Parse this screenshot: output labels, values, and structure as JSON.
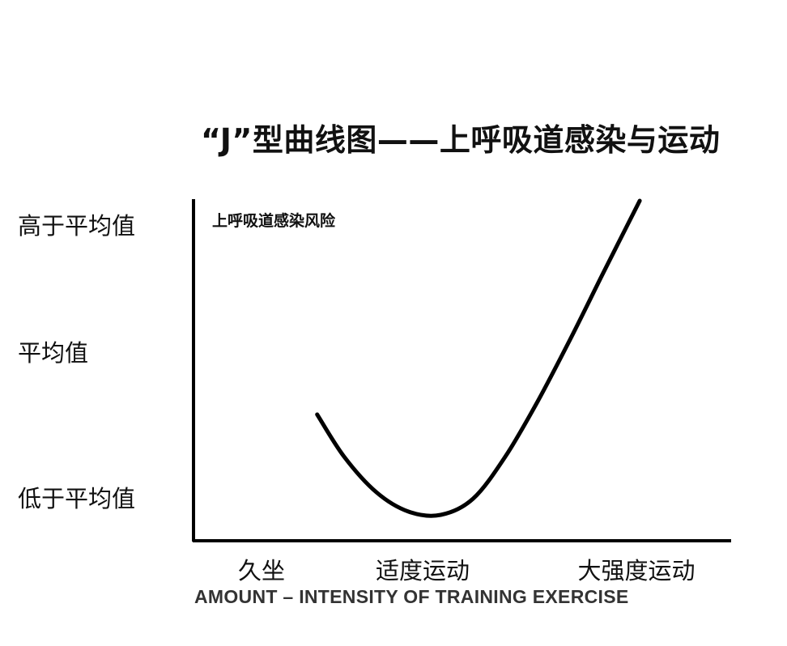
{
  "chart_data": {
    "type": "line",
    "title": "“J”型曲线图——上呼吸道感染与运动",
    "ylabel": "上呼吸道感染风险",
    "xlabel": "AMOUNT – INTENSITY OF TRAINING  EXERCISE",
    "x_categories": [
      "久坐",
      "适度运动",
      "大强度运动"
    ],
    "y_categories": [
      "高于平均值",
      "平均值",
      "低于平均值"
    ],
    "xlim": [
      0,
      10
    ],
    "ylim": [
      0,
      10
    ],
    "grid": false,
    "legend": "none",
    "series": [
      {
        "x": [
          2.3,
          2.8,
          3.4,
          4.0,
          4.6,
          5.2,
          5.8,
          6.4,
          7.0,
          7.6,
          8.3
        ],
        "y": [
          3.9,
          2.6,
          1.5,
          0.9,
          0.8,
          1.3,
          2.6,
          4.3,
          6.2,
          8.2,
          10.5
        ]
      }
    ],
    "color": "#000000"
  }
}
